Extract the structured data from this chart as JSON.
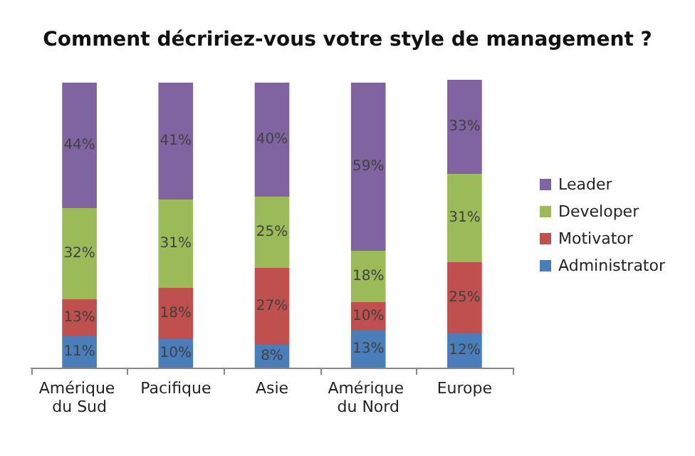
{
  "chart_data": {
    "type": "bar",
    "title": "Comment décririez-vous votre style de management ?",
    "categories": [
      "Amérique du Sud",
      "Pacifique",
      "Asie",
      "Amérique du Nord",
      "Europe"
    ],
    "stacked": true,
    "tick_labels": "x",
    "legend": "right",
    "series": [
      {
        "name": "Administrator",
        "color": "#4a7ebb",
        "values": [
          11,
          10,
          8,
          13,
          12
        ],
        "value_labels": [
          "11%",
          "10%",
          "8%",
          "13%",
          "12%"
        ]
      },
      {
        "name": "Motivator",
        "color": "#c0504d",
        "values": [
          13,
          18,
          27,
          10,
          25
        ],
        "value_labels": [
          "13%",
          "18%",
          "27%",
          "10%",
          "25%"
        ]
      },
      {
        "name": "Developer",
        "color": "#9bbb59",
        "values": [
          32,
          31,
          25,
          18,
          31
        ],
        "value_labels": [
          "32%",
          "31%",
          "25%",
          "18%",
          "31%"
        ]
      },
      {
        "name": "Leader",
        "color": "#8064a2",
        "values": [
          44,
          41,
          40,
          59,
          33
        ],
        "value_labels": [
          "44%",
          "41%",
          "40%",
          "59%",
          "33%"
        ]
      }
    ]
  }
}
